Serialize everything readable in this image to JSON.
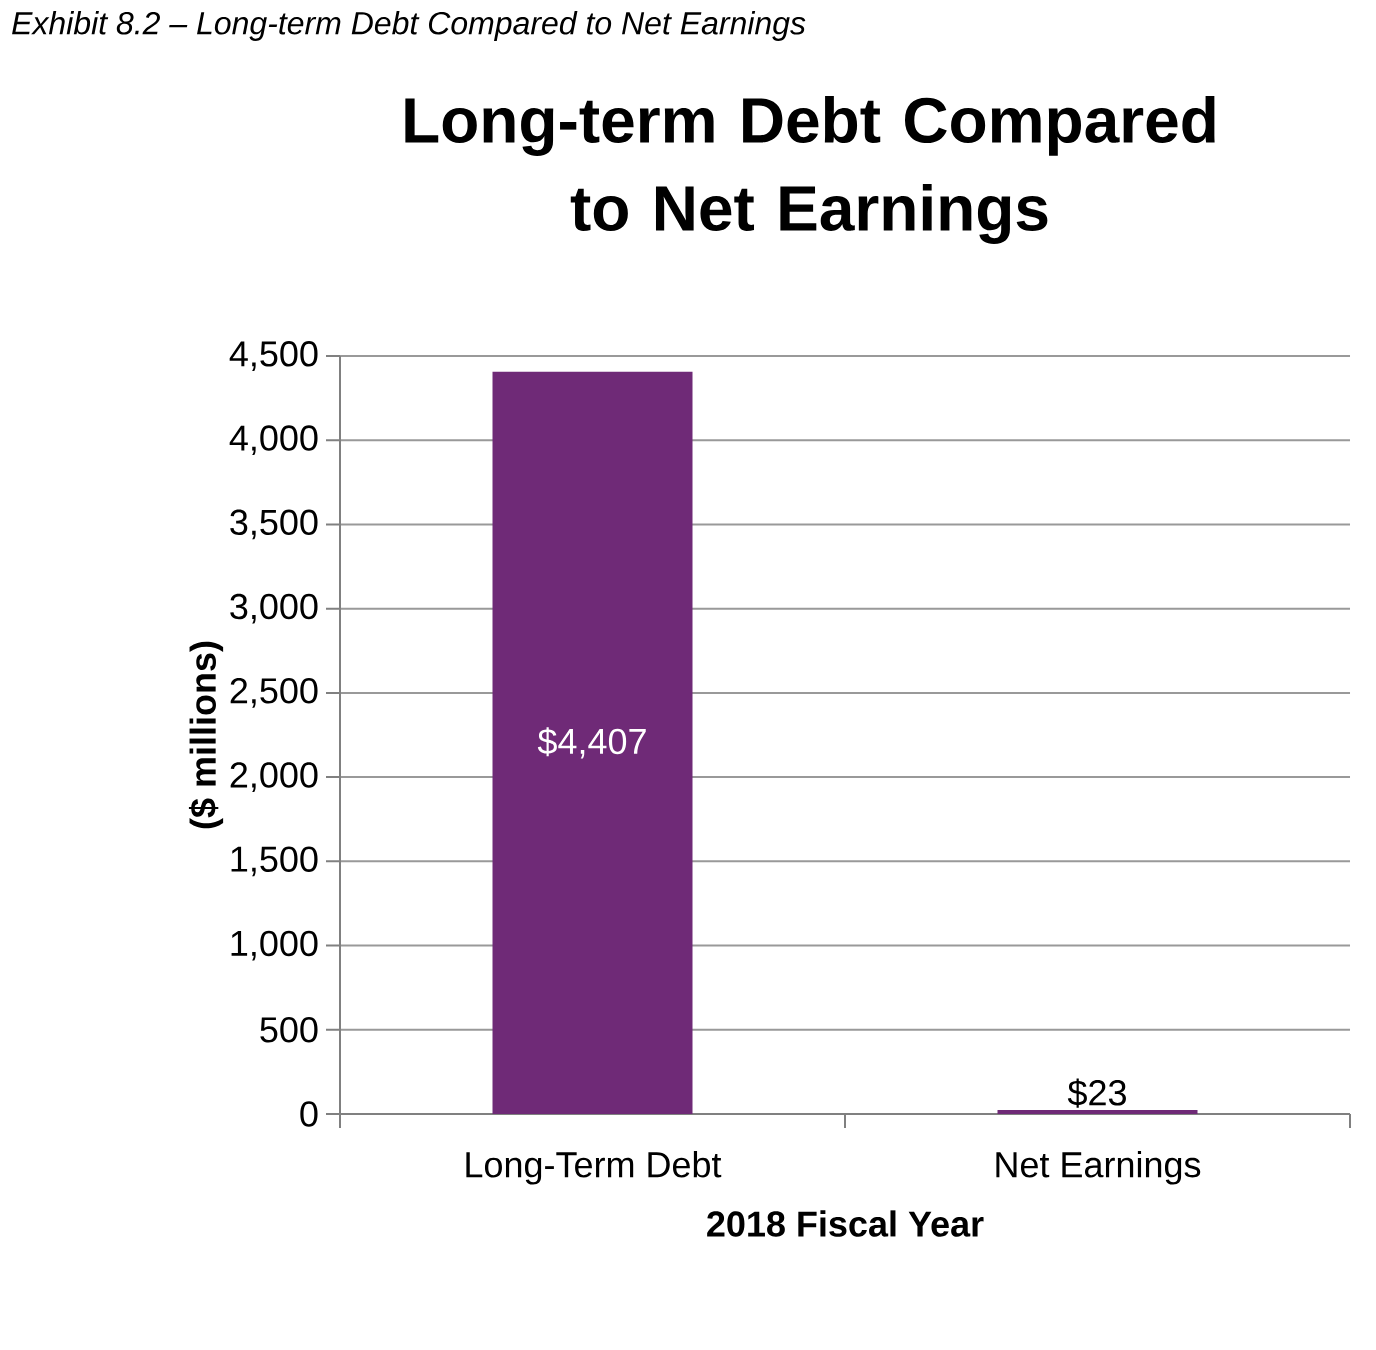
{
  "chart_data": {
    "type": "bar",
    "title": "Long-term Debt Compared to Net Earnings",
    "annotations": [
      "Exhibit 8.2 – Long-term Debt Compared to Net Earnings"
    ],
    "xlabel": "2018 Fiscal Year",
    "ylabel": "($ millions)",
    "categories": [
      "Long-Term Debt",
      "Net Earnings"
    ],
    "values": [
      4407,
      23
    ],
    "color": "#6f2a77",
    "value_labels": [
      "$4,407",
      "$23"
    ],
    "ylim": [
      0,
      4500
    ],
    "yticks": [
      0,
      500,
      {
        "value": 1000,
        "label": "1,000"
      },
      {
        "value": 1500,
        "label": "1,500"
      },
      {
        "value": 2000,
        "label": "2,000"
      },
      {
        "value": 2500,
        "label": "2,500"
      },
      {
        "value": 3000,
        "label": "3,000"
      },
      {
        "value": 3500,
        "label": "3,500"
      },
      {
        "value": 4000,
        "label": "4,000"
      },
      {
        "value": 4500,
        "label": "4,500"
      }
    ],
    "grid": "y"
  }
}
